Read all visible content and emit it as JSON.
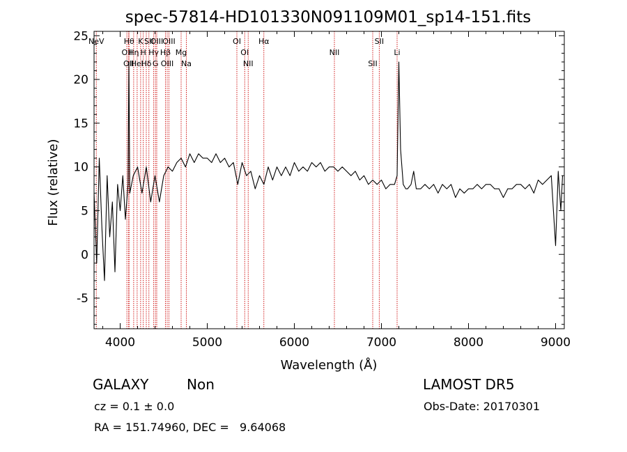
{
  "chart_data": {
    "type": "line",
    "title": "spec-57814-HD101330N091109M01_sp14-151.fits",
    "xlabel": "Wavelength (Å)",
    "ylabel": "Flux (relative)",
    "xlim": [
      3700,
      9100
    ],
    "ylim": [
      -8.5,
      25.5
    ],
    "x_ticks": [
      4000,
      5000,
      6000,
      7000,
      8000,
      9000
    ],
    "y_ticks": [
      -5,
      0,
      5,
      10,
      15,
      20,
      25
    ],
    "grid": false,
    "line_color": "#000000",
    "line_marker_color": "#cc0000",
    "series": [
      {
        "x": [
          3700,
          3730,
          3760,
          3790,
          3820,
          3850,
          3880,
          3910,
          3940,
          3970,
          4000,
          4030,
          4060,
          4090,
          4100,
          4110,
          4150,
          4200,
          4250,
          4300,
          4350,
          4400,
          4450,
          4500,
          4550,
          4600,
          4650,
          4700,
          4750,
          4800,
          4850,
          4900,
          4950,
          5000,
          5050,
          5100,
          5150,
          5200,
          5250,
          5300,
          5350,
          5400,
          5450,
          5500,
          5550,
          5600,
          5650,
          5700,
          5750,
          5800,
          5850,
          5900,
          5950,
          6000,
          6050,
          6100,
          6150,
          6200,
          6250,
          6300,
          6350,
          6400,
          6450,
          6500,
          6550,
          6600,
          6650,
          6700,
          6750,
          6800,
          6850,
          6900,
          6950,
          7000,
          7050,
          7100,
          7150,
          7180,
          7200,
          7220,
          7250,
          7280,
          7300,
          7340,
          7370,
          7400,
          7450,
          7500,
          7550,
          7600,
          7650,
          7700,
          7750,
          7800,
          7850,
          7900,
          7950,
          8000,
          8050,
          8100,
          8150,
          8200,
          8250,
          8300,
          8350,
          8400,
          8450,
          8500,
          8550,
          8600,
          8650,
          8700,
          8750,
          8800,
          8850,
          8900,
          8950,
          9000,
          9030,
          9060,
          9080
        ],
        "y": [
          7,
          -1,
          11,
          3,
          -3,
          9,
          2,
          6,
          -2,
          8,
          5,
          9,
          4,
          8,
          22,
          7,
          9,
          10,
          7,
          10,
          6,
          9,
          6,
          9,
          10,
          9.5,
          10.5,
          11,
          10,
          11.5,
          10.5,
          11.5,
          11,
          11,
          10.5,
          11.5,
          10.5,
          11,
          10,
          10.5,
          8,
          10.5,
          9,
          9.5,
          7.5,
          9,
          8,
          10,
          8.5,
          10,
          9,
          10,
          9,
          10.5,
          9.5,
          10,
          9.5,
          10.5,
          10,
          10.5,
          9.5,
          10,
          10,
          9.5,
          10,
          9.5,
          9,
          9.5,
          8.5,
          9,
          8,
          8.5,
          8,
          8.5,
          7.5,
          8,
          8,
          9,
          22,
          12,
          8,
          7.5,
          7.5,
          8,
          9.5,
          7.5,
          7.5,
          8,
          7.5,
          8,
          7,
          8,
          7.5,
          8,
          6.5,
          7.5,
          7,
          7.5,
          7.5,
          8,
          7.5,
          8,
          8,
          7.5,
          7.5,
          6.5,
          7.5,
          7.5,
          8,
          8,
          7.5,
          8,
          7,
          8.5,
          8,
          8.5,
          9,
          1,
          9.5,
          5,
          9
        ]
      }
    ],
    "lines": [
      {
        "name": "NeV",
        "x": 3726
      },
      {
        "name": "OII",
        "x": 4077
      },
      {
        "name": "OII",
        "x": 4097
      },
      {
        "name": "Hθ",
        "x": 4102
      },
      {
        "name": "Hη",
        "x": 4155
      },
      {
        "name": "HeI",
        "x": 4195
      },
      {
        "name": "K",
        "x": 4235
      },
      {
        "name": "H",
        "x": 4265
      },
      {
        "name": "Hδ",
        "x": 4300
      },
      {
        "name": "SII",
        "x": 4330
      },
      {
        "name": "Hγ",
        "x": 4385
      },
      {
        "name": "G",
        "x": 4405
      },
      {
        "name": "OIII",
        "x": 4420
      },
      {
        "name": "Hβ",
        "x": 4520
      },
      {
        "name": "OIII",
        "x": 4540
      },
      {
        "name": "OIII",
        "x": 4560
      },
      {
        "name": "Mg",
        "x": 4700
      },
      {
        "name": "Na",
        "x": 4760
      },
      {
        "name": "OI",
        "x": 5340
      },
      {
        "name": "OI",
        "x": 5430
      },
      {
        "name": "NII",
        "x": 5470
      },
      {
        "name": "Hα",
        "x": 5650
      },
      {
        "name": "NII",
        "x": 6460
      },
      {
        "name": "SII",
        "x": 6900
      },
      {
        "name": "SII",
        "x": 6975
      },
      {
        "name": "Li",
        "x": 7180
      }
    ]
  },
  "info": {
    "class": "GALAXY",
    "subclass": "Non",
    "survey": "LAMOST DR5",
    "cz": "cz = 0.1 ± 0.0",
    "obs_date": "Obs-Date: 20170301",
    "radec": "RA = 151.74960, DEC =   9.64068"
  }
}
